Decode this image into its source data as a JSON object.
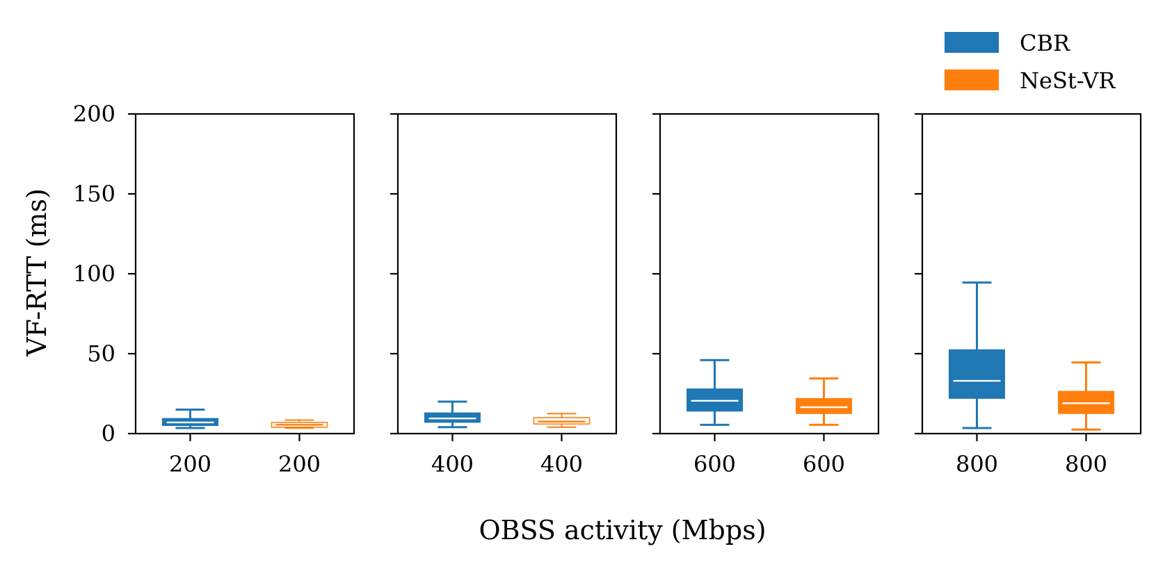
{
  "chart_data": {
    "type": "boxplot",
    "ylabel": "VF-RTT (ms)",
    "xlabel": "OBSS activity (Mbps)",
    "ylim": [
      0,
      200
    ],
    "yticks": [
      0,
      50,
      100,
      150,
      200
    ],
    "legend": {
      "position": "top-right",
      "entries": [
        {
          "name": "CBR",
          "color": "#1f77b4"
        },
        {
          "name": "NeSt-VR",
          "color": "#ff7f0e"
        }
      ]
    },
    "panels": [
      {
        "boxes": [
          {
            "label": "200",
            "series": "CBR",
            "whislo": 3.5,
            "q1": 5,
            "median": 7,
            "q3": 9.5,
            "whishi": 15,
            "filled": true
          },
          {
            "label": "200",
            "series": "NeSt-VR",
            "whislo": 3.5,
            "q1": 4,
            "median": 5.5,
            "q3": 7,
            "whishi": 8.5,
            "filled": false
          }
        ]
      },
      {
        "boxes": [
          {
            "label": "400",
            "series": "CBR",
            "whislo": 4,
            "q1": 7,
            "median": 9.5,
            "q3": 13,
            "whishi": 20,
            "filled": true
          },
          {
            "label": "400",
            "series": "NeSt-VR",
            "whislo": 4,
            "q1": 6,
            "median": 7.5,
            "q3": 10,
            "whishi": 12.5,
            "filled": false
          }
        ]
      },
      {
        "boxes": [
          {
            "label": "600",
            "series": "CBR",
            "whislo": 5.5,
            "q1": 14,
            "median": 20.5,
            "q3": 28,
            "whishi": 46,
            "filled": true
          },
          {
            "label": "600",
            "series": "NeSt-VR",
            "whislo": 5.5,
            "q1": 12.5,
            "median": 16.5,
            "q3": 22,
            "whishi": 34.5,
            "filled": true
          }
        ]
      },
      {
        "boxes": [
          {
            "label": "800",
            "series": "CBR",
            "whislo": 3.5,
            "q1": 22,
            "median": 33,
            "q3": 52.5,
            "whishi": 94.5,
            "filled": true
          },
          {
            "label": "800",
            "series": "NeSt-VR",
            "whislo": 2.5,
            "q1": 12.5,
            "median": 19,
            "q3": 26.5,
            "whishi": 44.5,
            "filled": true
          }
        ]
      }
    ]
  }
}
